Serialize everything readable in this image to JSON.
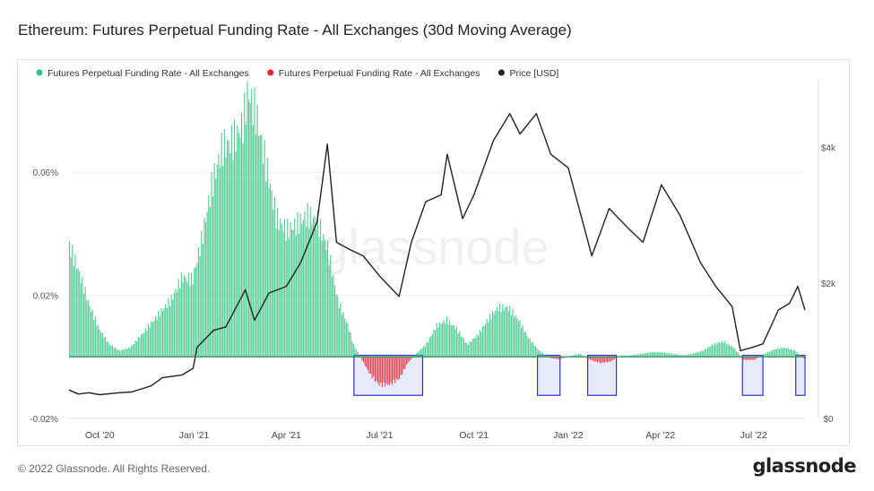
{
  "header": {
    "title": "Ethereum: Futures Perpetual Funding Rate - All Exchanges (30d Moving Average)"
  },
  "footer": {
    "copyright": "© 2022 Glassnode. All Rights Reserved.",
    "brand": "glassnode"
  },
  "watermark": "glassnode",
  "colors": {
    "positive": "#2ec27e",
    "negative": "#e8252d",
    "price": "#222222",
    "highlight_fill": "#e8e9fb",
    "highlight_stroke": "#2a33c8"
  },
  "chart_data": {
    "type": "bar",
    "title": "Ethereum: Futures Perpetual Funding Rate - All Exchanges (30d Moving Average)",
    "legend": {
      "placement": "top-left",
      "items": [
        {
          "label": "Futures Perpetual Funding Rate - All Exchanges",
          "color": "#2ec27e"
        },
        {
          "label": "Futures Perpetual Funding Rate - All Exchanges",
          "color": "#e8252d"
        },
        {
          "label": "Price [USD]",
          "color": "#222222"
        }
      ]
    },
    "x_range": [
      "2020-09-01",
      "2022-08-20"
    ],
    "x_ticks": [
      {
        "date": "2020-10-01",
        "label": "Oct '20"
      },
      {
        "date": "2021-01-01",
        "label": "Jan '21"
      },
      {
        "date": "2021-04-01",
        "label": "Apr '21"
      },
      {
        "date": "2021-07-01",
        "label": "Jul '21"
      },
      {
        "date": "2021-10-01",
        "label": "Oct '21"
      },
      {
        "date": "2022-01-01",
        "label": "Jan '22"
      },
      {
        "date": "2022-04-01",
        "label": "Apr '22"
      },
      {
        "date": "2022-07-01",
        "label": "Jul '22"
      }
    ],
    "y_left": {
      "unit": "%",
      "range": [
        -0.02,
        0.09
      ],
      "ticks": [
        {
          "value": -0.02,
          "label": "-0.02%"
        },
        {
          "value": 0.02,
          "label": "0.02%"
        },
        {
          "value": 0.06,
          "label": "0.06%"
        }
      ]
    },
    "y_right": {
      "unit": "USD",
      "range": [
        0,
        5000
      ],
      "ticks": [
        {
          "value": 0,
          "label": "$0"
        },
        {
          "value": 2000,
          "label": "$2k"
        },
        {
          "value": 4000,
          "label": "$4k"
        }
      ]
    },
    "grid": "horizontal",
    "series": [
      {
        "name": "Futures Perpetual Funding Rate - All Exchanges",
        "kind": "bars",
        "points": [
          [
            "2020-09-01",
            0.036
          ],
          [
            "2020-09-10",
            0.028
          ],
          [
            "2020-09-20",
            0.017
          ],
          [
            "2020-09-30",
            0.009
          ],
          [
            "2020-10-10",
            0.004
          ],
          [
            "2020-10-20",
            0.002
          ],
          [
            "2020-10-30",
            0.003
          ],
          [
            "2020-11-10",
            0.007
          ],
          [
            "2020-11-20",
            0.011
          ],
          [
            "2020-11-30",
            0.015
          ],
          [
            "2020-12-10",
            0.019
          ],
          [
            "2020-12-20",
            0.026
          ],
          [
            "2020-12-30",
            0.025
          ],
          [
            "2021-01-08",
            0.038
          ],
          [
            "2021-01-18",
            0.056
          ],
          [
            "2021-01-28",
            0.068
          ],
          [
            "2021-02-07",
            0.07
          ],
          [
            "2021-02-17",
            0.075
          ],
          [
            "2021-02-22",
            0.086
          ],
          [
            "2021-03-02",
            0.079
          ],
          [
            "2021-03-12",
            0.062
          ],
          [
            "2021-03-22",
            0.045
          ],
          [
            "2021-04-01",
            0.041
          ],
          [
            "2021-04-11",
            0.043
          ],
          [
            "2021-04-21",
            0.046
          ],
          [
            "2021-05-01",
            0.044
          ],
          [
            "2021-05-11",
            0.035
          ],
          [
            "2021-05-21",
            0.018
          ],
          [
            "2021-05-31",
            0.01
          ],
          [
            "2021-06-05",
            0.004
          ],
          [
            "2021-06-10",
            0.001
          ],
          [
            "2021-06-15",
            -0.002
          ],
          [
            "2021-06-22",
            -0.006
          ],
          [
            "2021-06-30",
            -0.009
          ],
          [
            "2021-07-10",
            -0.009
          ],
          [
            "2021-07-20",
            -0.007
          ],
          [
            "2021-07-28",
            -0.002
          ],
          [
            "2021-08-05",
            0.001
          ],
          [
            "2021-08-15",
            0.004
          ],
          [
            "2021-08-25",
            0.01
          ],
          [
            "2021-09-04",
            0.012
          ],
          [
            "2021-09-14",
            0.009
          ],
          [
            "2021-09-24",
            0.004
          ],
          [
            "2021-10-04",
            0.007
          ],
          [
            "2021-10-14",
            0.012
          ],
          [
            "2021-10-24",
            0.016
          ],
          [
            "2021-11-03",
            0.016
          ],
          [
            "2021-11-13",
            0.012
          ],
          [
            "2021-11-23",
            0.006
          ],
          [
            "2021-12-03",
            0.002
          ],
          [
            "2021-12-13",
            -0.0003
          ],
          [
            "2021-12-23",
            -0.0008
          ],
          [
            "2022-01-02",
            0.0003
          ],
          [
            "2022-01-12",
            0.001
          ],
          [
            "2022-01-22",
            -0.001
          ],
          [
            "2022-02-01",
            -0.002
          ],
          [
            "2022-02-11",
            -0.0015
          ],
          [
            "2022-02-21",
            0.0005
          ],
          [
            "2022-03-03",
            0.0005
          ],
          [
            "2022-03-13",
            0.001
          ],
          [
            "2022-03-23",
            0.0015
          ],
          [
            "2022-04-02",
            0.0015
          ],
          [
            "2022-04-12",
            0.001
          ],
          [
            "2022-04-22",
            0.0005
          ],
          [
            "2022-05-02",
            0.001
          ],
          [
            "2022-05-12",
            0.002
          ],
          [
            "2022-05-22",
            0.004
          ],
          [
            "2022-06-01",
            0.005
          ],
          [
            "2022-06-11",
            0.003
          ],
          [
            "2022-06-21",
            -0.001
          ],
          [
            "2022-07-01",
            -0.001
          ],
          [
            "2022-07-11",
            0.001
          ],
          [
            "2022-07-21",
            0.0025
          ],
          [
            "2022-07-31",
            0.003
          ],
          [
            "2022-08-10",
            0.002
          ],
          [
            "2022-08-18",
            -0.0005
          ]
        ]
      },
      {
        "name": "Price [USD]",
        "kind": "line",
        "axis": "right",
        "points": [
          [
            "2020-09-01",
            420
          ],
          [
            "2020-09-10",
            360
          ],
          [
            "2020-09-20",
            380
          ],
          [
            "2020-10-01",
            350
          ],
          [
            "2020-10-20",
            380
          ],
          [
            "2020-11-01",
            390
          ],
          [
            "2020-11-20",
            480
          ],
          [
            "2020-12-01",
            600
          ],
          [
            "2020-12-20",
            640
          ],
          [
            "2020-12-31",
            740
          ],
          [
            "2021-01-04",
            1050
          ],
          [
            "2021-01-20",
            1300
          ],
          [
            "2021-02-01",
            1350
          ],
          [
            "2021-02-20",
            1900
          ],
          [
            "2021-03-01",
            1450
          ],
          [
            "2021-03-15",
            1850
          ],
          [
            "2021-04-01",
            1950
          ],
          [
            "2021-04-15",
            2300
          ],
          [
            "2021-05-01",
            2900
          ],
          [
            "2021-05-11",
            4050
          ],
          [
            "2021-05-20",
            2600
          ],
          [
            "2021-06-01",
            2500
          ],
          [
            "2021-06-15",
            2400
          ],
          [
            "2021-07-01",
            2100
          ],
          [
            "2021-07-20",
            1800
          ],
          [
            "2021-08-01",
            2600
          ],
          [
            "2021-08-15",
            3200
          ],
          [
            "2021-08-30",
            3300
          ],
          [
            "2021-09-05",
            3900
          ],
          [
            "2021-09-20",
            2950
          ],
          [
            "2021-10-01",
            3300
          ],
          [
            "2021-10-20",
            4100
          ],
          [
            "2021-11-05",
            4500
          ],
          [
            "2021-11-15",
            4200
          ],
          [
            "2021-12-01",
            4500
          ],
          [
            "2021-12-15",
            3900
          ],
          [
            "2022-01-01",
            3700
          ],
          [
            "2022-01-24",
            2400
          ],
          [
            "2022-02-10",
            3100
          ],
          [
            "2022-03-01",
            2800
          ],
          [
            "2022-03-15",
            2600
          ],
          [
            "2022-04-02",
            3450
          ],
          [
            "2022-04-20",
            3000
          ],
          [
            "2022-05-10",
            2300
          ],
          [
            "2022-05-25",
            1950
          ],
          [
            "2022-06-10",
            1650
          ],
          [
            "2022-06-18",
            1000
          ],
          [
            "2022-06-30",
            1050
          ],
          [
            "2022-07-10",
            1100
          ],
          [
            "2022-07-25",
            1600
          ],
          [
            "2022-08-05",
            1700
          ],
          [
            "2022-08-13",
            1950
          ],
          [
            "2022-08-20",
            1600
          ]
        ]
      }
    ],
    "highlight_boxes": [
      {
        "from": "2021-06-06",
        "to": "2021-08-12",
        "y_top": 0.0005,
        "y_bottom": -0.0125
      },
      {
        "from": "2021-12-02",
        "to": "2021-12-24",
        "y_top": 0.0005,
        "y_bottom": -0.0125
      },
      {
        "from": "2022-01-20",
        "to": "2022-02-17",
        "y_top": 0.0005,
        "y_bottom": -0.0125
      },
      {
        "from": "2022-06-20",
        "to": "2022-07-10",
        "y_top": 0.0005,
        "y_bottom": -0.0125
      },
      {
        "from": "2022-08-11",
        "to": "2022-08-20",
        "y_top": 0.0005,
        "y_bottom": -0.0125
      }
    ]
  }
}
